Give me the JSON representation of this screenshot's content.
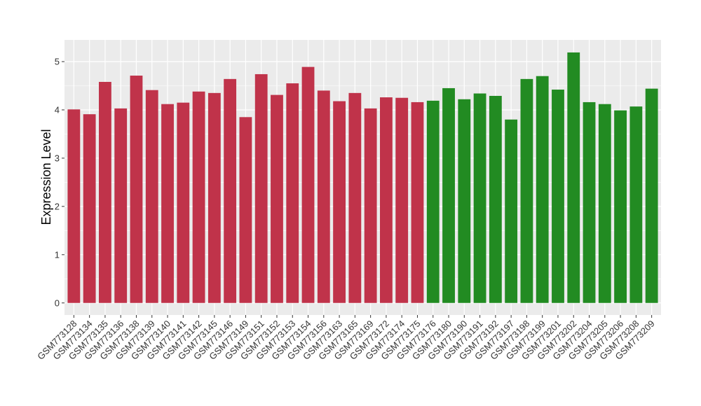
{
  "chart_data": {
    "type": "bar",
    "ylabel": "Expression Level",
    "xlabel": "",
    "ylim": [
      -0.25,
      5.45
    ],
    "yticks": [
      0,
      1,
      2,
      3,
      4,
      5
    ],
    "grid": true,
    "colors": {
      "group1": "#c0334a",
      "group2": "#228b22",
      "panel": "#ebebeb",
      "gridline": "#ffffff"
    },
    "categories": [
      "GSM773128",
      "GSM773134",
      "GSM773135",
      "GSM773136",
      "GSM773138",
      "GSM773139",
      "GSM773140",
      "GSM773141",
      "GSM773142",
      "GSM773145",
      "GSM773146",
      "GSM773149",
      "GSM773151",
      "GSM773152",
      "GSM773153",
      "GSM773154",
      "GSM773156",
      "GSM773163",
      "GSM773165",
      "GSM773169",
      "GSM773172",
      "GSM773174",
      "GSM773175",
      "GSM773176",
      "GSM773180",
      "GSM773190",
      "GSM773191",
      "GSM773192",
      "GSM773197",
      "GSM773198",
      "GSM773199",
      "GSM773201",
      "GSM773202",
      "GSM773204",
      "GSM773205",
      "GSM773206",
      "GSM773208",
      "GSM773209"
    ],
    "values": [
      4.01,
      3.91,
      4.58,
      4.03,
      4.71,
      4.41,
      4.12,
      4.15,
      4.38,
      4.35,
      4.64,
      3.85,
      4.74,
      4.31,
      4.55,
      4.89,
      4.4,
      4.18,
      4.35,
      4.03,
      4.26,
      4.25,
      4.16,
      4.19,
      4.45,
      4.22,
      4.34,
      4.29,
      3.8,
      4.64,
      4.7,
      4.42,
      5.19,
      4.16,
      4.12,
      3.99,
      4.07,
      4.44
    ],
    "groups": [
      1,
      1,
      1,
      1,
      1,
      1,
      1,
      1,
      1,
      1,
      1,
      1,
      1,
      1,
      1,
      1,
      1,
      1,
      1,
      1,
      1,
      1,
      1,
      2,
      2,
      2,
      2,
      2,
      2,
      2,
      2,
      2,
      2,
      2,
      2,
      2,
      2,
      2
    ]
  }
}
